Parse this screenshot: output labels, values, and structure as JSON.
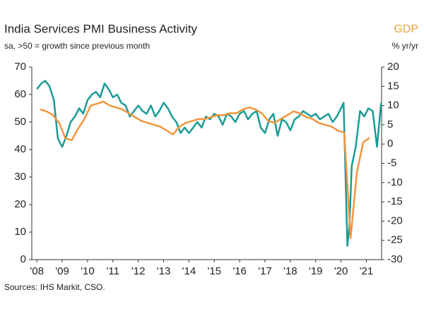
{
  "chart_data": {
    "type": "line",
    "title": "India Services PMI Business Activity",
    "subtitle": "sa, >50 = growth since previous month",
    "y2label": "GDP",
    "y2unit": "% yr/yr",
    "source": "Sources: IHS Markit, CSO.",
    "xlim": [
      2007.8,
      2021.6
    ],
    "xticks": [
      {
        "value": 2008,
        "label": "'08"
      },
      {
        "value": 2009,
        "label": "'09"
      },
      {
        "value": 2010,
        "label": "'10"
      },
      {
        "value": 2011,
        "label": "'11"
      },
      {
        "value": 2012,
        "label": "'12"
      },
      {
        "value": 2013,
        "label": "'13"
      },
      {
        "value": 2014,
        "label": "'14"
      },
      {
        "value": 2015,
        "label": "'15"
      },
      {
        "value": 2016,
        "label": "'16"
      },
      {
        "value": 2017,
        "label": "'17"
      },
      {
        "value": 2018,
        "label": "'18"
      },
      {
        "value": 2019,
        "label": "'19"
      },
      {
        "value": 2020,
        "label": "'20"
      },
      {
        "value": 2021,
        "label": "'21"
      }
    ],
    "ylim": [
      0,
      70
    ],
    "yticks": [
      0,
      10,
      20,
      30,
      40,
      50,
      60,
      70
    ],
    "y2lim": [
      -30,
      20
    ],
    "y2ticks": [
      -30,
      -25,
      -20,
      -15,
      -10,
      -5,
      0,
      5,
      10,
      15,
      20
    ],
    "series": [
      {
        "color": "#1a9c96",
        "x": [
          2008.0,
          2008.17,
          2008.33,
          2008.5,
          2008.67,
          2008.83,
          2009.0,
          2009.17,
          2009.33,
          2009.5,
          2009.67,
          2009.83,
          2010.0,
          2010.17,
          2010.33,
          2010.5,
          2010.67,
          2010.83,
          2011.0,
          2011.17,
          2011.33,
          2011.5,
          2011.67,
          2011.83,
          2012.0,
          2012.17,
          2012.33,
          2012.5,
          2012.67,
          2012.83,
          2013.0,
          2013.17,
          2013.33,
          2013.5,
          2013.67,
          2013.83,
          2014.0,
          2014.17,
          2014.33,
          2014.5,
          2014.67,
          2014.83,
          2015.0,
          2015.17,
          2015.33,
          2015.5,
          2015.67,
          2015.83,
          2016.0,
          2016.17,
          2016.33,
          2016.5,
          2016.67,
          2016.83,
          2017.0,
          2017.17,
          2017.33,
          2017.5,
          2017.67,
          2017.83,
          2018.0,
          2018.17,
          2018.33,
          2018.5,
          2018.67,
          2018.83,
          2019.0,
          2019.17,
          2019.33,
          2019.5,
          2019.67,
          2019.83,
          2020.0,
          2020.1,
          2020.25,
          2020.33,
          2020.42,
          2020.58,
          2020.75,
          2020.92,
          2021.08,
          2021.25,
          2021.42,
          2021.58
        ],
        "values": [
          62,
          64,
          65,
          63,
          58,
          44,
          41,
          45,
          50,
          52,
          55,
          53,
          58,
          60,
          61,
          59,
          64,
          62,
          59,
          60,
          57,
          56,
          52,
          54,
          56,
          54,
          53,
          56,
          52,
          54,
          57,
          55,
          52,
          50,
          46,
          48,
          46,
          48,
          50,
          48,
          52,
          51,
          53,
          52,
          49,
          53,
          52,
          50,
          53,
          54,
          51,
          53,
          54,
          48,
          46,
          51,
          53,
          45,
          51,
          50,
          47,
          51,
          52,
          54,
          53,
          52,
          53,
          51,
          52,
          53,
          50,
          52,
          55,
          57,
          5,
          12,
          34,
          41,
          54,
          52,
          55,
          54,
          41,
          57
        ]
      },
      {
        "color": "#f0963e",
        "axis": "y2",
        "x": [
          2008.125,
          2008.375,
          2008.625,
          2008.875,
          2009.125,
          2009.375,
          2009.625,
          2009.875,
          2010.125,
          2010.375,
          2010.625,
          2010.875,
          2011.125,
          2011.375,
          2011.625,
          2011.875,
          2012.125,
          2012.375,
          2012.625,
          2012.875,
          2013.125,
          2013.375,
          2013.625,
          2013.875,
          2014.125,
          2014.375,
          2014.625,
          2014.875,
          2015.125,
          2015.375,
          2015.625,
          2015.875,
          2016.125,
          2016.375,
          2016.625,
          2016.875,
          2017.125,
          2017.375,
          2017.625,
          2017.875,
          2018.125,
          2018.375,
          2018.625,
          2018.875,
          2019.125,
          2019.375,
          2019.625,
          2019.875,
          2020.125,
          2020.375,
          2020.625,
          2020.875,
          2021.125
        ],
        "values": [
          9,
          8.5,
          7.6,
          5.5,
          1.5,
          1,
          4,
          6.5,
          10,
          10.5,
          11,
          10,
          9.5,
          9,
          8,
          7,
          6,
          5.5,
          5,
          4.5,
          3.5,
          2.5,
          4.5,
          5.5,
          6,
          6.5,
          6.5,
          7,
          7.5,
          7.5,
          8,
          8,
          9,
          9.5,
          9,
          8,
          6,
          5.5,
          6.5,
          7.5,
          8.5,
          8,
          7,
          6.5,
          5.5,
          5,
          4.5,
          3.5,
          3,
          -24.4,
          -7.4,
          0.5,
          1.6
        ]
      }
    ]
  }
}
